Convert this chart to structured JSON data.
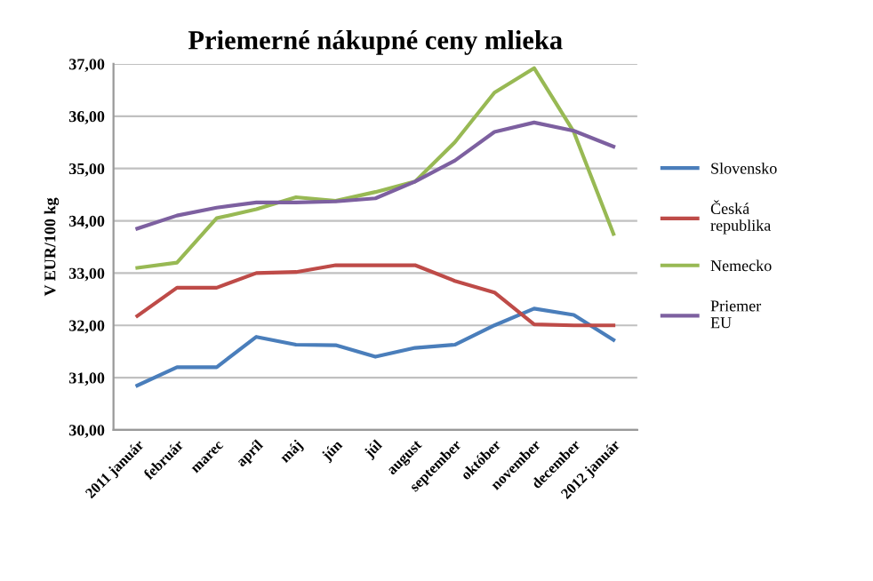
{
  "chart_data": {
    "type": "line",
    "title": "Priemerné nákupné ceny mlieka",
    "ylabel": "V EUR/100 kg",
    "categories": [
      "2011 január",
      "február",
      "marec",
      "apríl",
      "máj",
      "jún",
      "júl",
      "august",
      "september",
      "október",
      "november",
      "december",
      "2012 január"
    ],
    "series": [
      {
        "name": "Slovensko",
        "color": "#4a7ebb",
        "values": [
          30.85,
          31.2,
          31.2,
          31.78,
          31.63,
          31.62,
          31.4,
          31.57,
          31.63,
          32.0,
          32.32,
          32.2,
          31.72
        ]
      },
      {
        "name": "Česká\nrepublika",
        "color": "#be4b48",
        "values": [
          32.18,
          32.72,
          32.72,
          33.0,
          33.02,
          33.15,
          33.15,
          33.15,
          32.85,
          32.63,
          32.02,
          32.0,
          32.0
        ]
      },
      {
        "name": "Nemecko",
        "color": "#98b954",
        "values": [
          33.1,
          33.2,
          34.05,
          34.22,
          34.45,
          34.38,
          34.55,
          34.75,
          35.5,
          36.45,
          36.92,
          35.7,
          33.75
        ]
      },
      {
        "name": "Priemer\nEU",
        "color": "#7d60a0",
        "values": [
          33.85,
          34.1,
          34.25,
          34.35,
          34.35,
          34.37,
          34.43,
          34.75,
          35.15,
          35.7,
          35.88,
          35.72,
          35.42
        ]
      }
    ],
    "ylim": [
      30,
      37
    ],
    "yticks": [
      {
        "value": 30,
        "label": "30,00"
      },
      {
        "value": 31,
        "label": "31,00"
      },
      {
        "value": 32,
        "label": "32,00"
      },
      {
        "value": 33,
        "label": "33,00"
      },
      {
        "value": 34,
        "label": "34,00"
      },
      {
        "value": 35,
        "label": "35,00"
      },
      {
        "value": 36,
        "label": "36,00"
      },
      {
        "value": 37,
        "label": "37,00"
      }
    ],
    "grid": "y",
    "legend": "right",
    "marker": "none",
    "line_style": "solid"
  }
}
